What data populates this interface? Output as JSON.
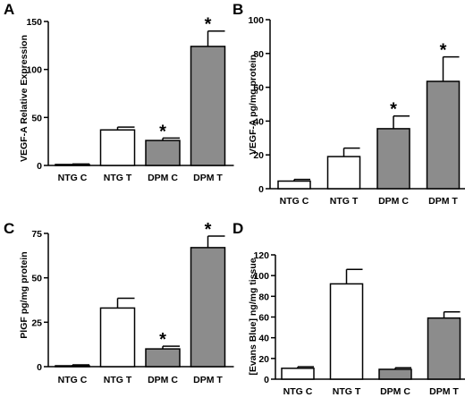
{
  "colors": {
    "control_fill": "#ffffff",
    "treated_fill": "#8c8c8c",
    "stroke": "#000000"
  },
  "chart_data": [
    {
      "panel": "A",
      "type": "bar",
      "ylabel": "VEGF-A Relative Expression",
      "ylim": [
        0,
        150
      ],
      "yticks": [
        0,
        50,
        100,
        150
      ],
      "categories": [
        "NTG C",
        "NTG T",
        "DPM C",
        "DPM T"
      ],
      "values": [
        1,
        37,
        26,
        124
      ],
      "errors": [
        0.5,
        3,
        2.5,
        16
      ],
      "significant": [
        false,
        false,
        true,
        true
      ],
      "fills": [
        "#ffffff",
        "#ffffff",
        "#8c8c8c",
        "#8c8c8c"
      ]
    },
    {
      "panel": "B",
      "type": "bar",
      "ylabel": "VEGF-A pg/mg protein",
      "ylim": [
        0,
        100
      ],
      "yticks": [
        0,
        20,
        40,
        60,
        80,
        100
      ],
      "categories": [
        "NTG C",
        "NTG T",
        "DPM C",
        "DPM T"
      ],
      "values": [
        4.5,
        19,
        35.5,
        63.5
      ],
      "errors": [
        1,
        5,
        7.5,
        14.5
      ],
      "significant": [
        false,
        false,
        true,
        true
      ],
      "fills": [
        "#ffffff",
        "#ffffff",
        "#8c8c8c",
        "#8c8c8c"
      ]
    },
    {
      "panel": "C",
      "type": "bar",
      "ylabel": "PlGF pg/mg protein",
      "ylim": [
        0,
        75
      ],
      "yticks": [
        0,
        25,
        50,
        75
      ],
      "categories": [
        "NTG C",
        "NTG T",
        "DPM C",
        "DPM T"
      ],
      "values": [
        0.5,
        33,
        10,
        67
      ],
      "errors": [
        0.5,
        5.5,
        1.5,
        6.5
      ],
      "significant": [
        false,
        false,
        true,
        true
      ],
      "fills": [
        "#ffffff",
        "#ffffff",
        "#8c8c8c",
        "#8c8c8c"
      ]
    },
    {
      "panel": "D",
      "type": "bar",
      "ylabel": "[Evans Blue] ng/mg tissue",
      "ylim": [
        0,
        120
      ],
      "yticks": [
        0,
        20,
        40,
        60,
        80,
        100,
        120
      ],
      "categories": [
        "NTG C",
        "NTG T",
        "DPM C",
        "DPM T"
      ],
      "values": [
        10.5,
        92,
        9.5,
        59
      ],
      "errors": [
        1.5,
        14,
        1.5,
        6
      ],
      "significant": [
        false,
        false,
        false,
        false
      ],
      "fills": [
        "#ffffff",
        "#ffffff",
        "#8c8c8c",
        "#8c8c8c"
      ]
    }
  ],
  "significance_marker": "*"
}
